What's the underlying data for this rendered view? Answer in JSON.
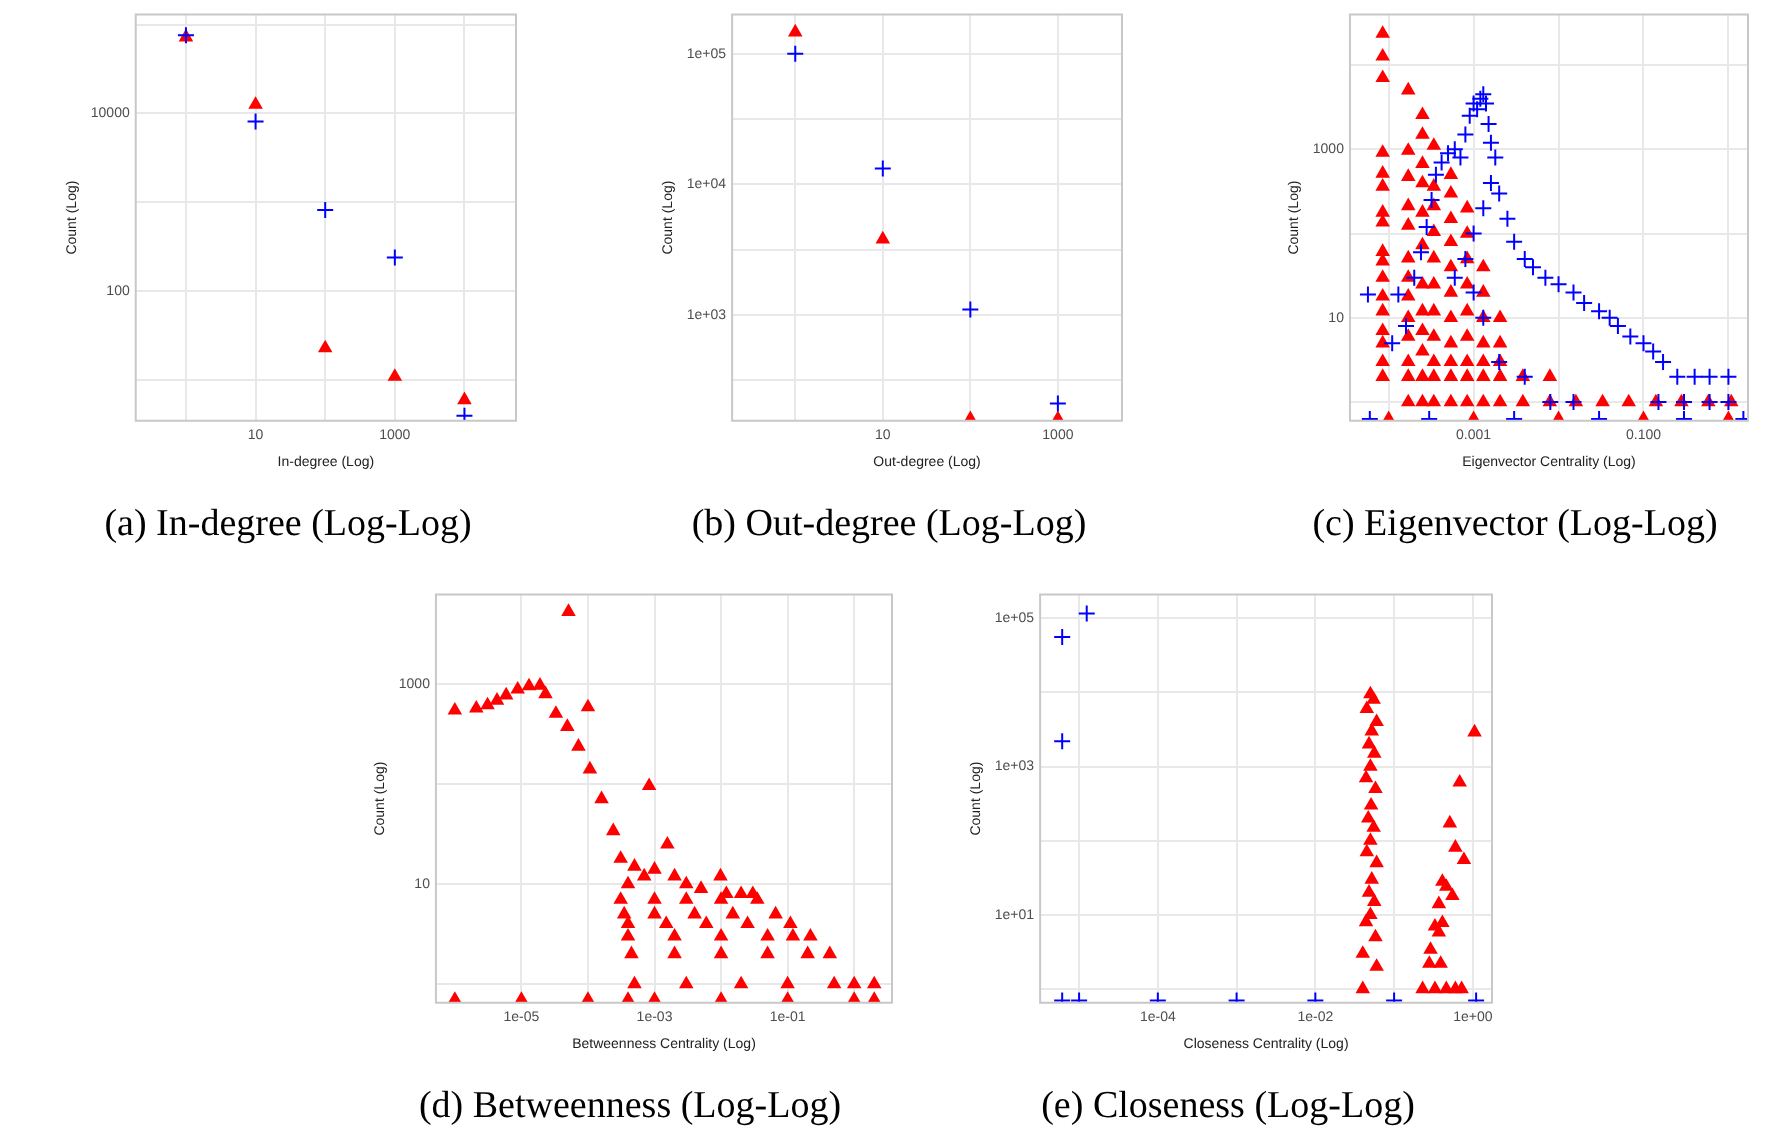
{
  "chart_data": [
    {
      "type": "scatter",
      "title": "(a) In-degree (Log-Log)",
      "xlabel": "In-degree (Log)",
      "ylabel": "Count (Log)",
      "log": "xy",
      "grid": true,
      "xlim": [
        0.19,
        55000
      ],
      "ylim": [
        3.5,
        130000
      ],
      "xticks": [
        {
          "value": 1,
          "label": null
        },
        10,
        {
          "value": 100,
          "label": null
        },
        1000,
        {
          "value": 10000,
          "label": null
        }
      ],
      "yticks": [
        {
          "value": 10,
          "label": null
        },
        100,
        {
          "value": 1000,
          "label": null
        },
        10000,
        {
          "value": 100000,
          "label": null
        }
      ],
      "series": [
        {
          "color": "#0000ff",
          "marker": "cross",
          "x": [
            1,
            10,
            100,
            1000,
            10000
          ],
          "values": [
            76000,
            8100,
            820,
            240,
            4
          ]
        },
        {
          "color": "#ff0000",
          "marker": "triangle",
          "x": [
            1,
            10,
            100,
            1000,
            10000
          ],
          "values": [
            72000,
            12600,
            23,
            11,
            6
          ]
        }
      ]
    },
    {
      "type": "scatter",
      "title": "(b) Out-degree (Log-Log)",
      "xlabel": "Out-degree (Log)",
      "ylabel": "Count (Log)",
      "log": "xy",
      "grid": true,
      "xlim": [
        0.19,
        5400
      ],
      "ylim": [
        155,
        200000
      ],
      "xticks": [
        {
          "value": 1,
          "label": null
        },
        10,
        {
          "value": 100,
          "label": null
        },
        1000
      ],
      "yticks": [
        {
          "value": 316,
          "label": null
        },
        {
          "value": 1000,
          "label": "1e+03"
        },
        {
          "value": 3162,
          "label": null
        },
        {
          "value": 10000,
          "label": "1e+04"
        },
        {
          "value": 31623,
          "label": null
        },
        {
          "value": 100000,
          "label": "1e+05"
        }
      ],
      "series": [
        {
          "color": "#0000ff",
          "marker": "cross",
          "x": [
            1,
            10,
            100,
            1000
          ],
          "values": [
            100000,
            13200,
            1100,
            210
          ]
        },
        {
          "color": "#ff0000",
          "marker": "triangle",
          "x": [
            1,
            10,
            100,
            1000
          ],
          "values": [
            146000,
            3800,
            160,
            160
          ]
        }
      ]
    },
    {
      "type": "scatter",
      "title": "(c) Eigenvector (Log-Log)",
      "xlabel": "Eigenvector Centrality (Log)",
      "ylabel": "Count (Log)",
      "log": "xy",
      "grid": true,
      "xlim": [
        3.5e-05,
        1.7
      ],
      "ylim": [
        0.6,
        40000
      ],
      "xticks": [
        {
          "value": 0.0001,
          "label": null
        },
        0.001,
        {
          "value": 0.01,
          "label": null
        },
        {
          "value": 0.1,
          "label": "0.100"
        },
        {
          "value": 1,
          "label": null
        }
      ],
      "yticks": [
        {
          "value": 1,
          "label": null
        },
        10,
        {
          "value": 100,
          "label": null
        },
        1000,
        {
          "value": 10000,
          "label": null
        }
      ],
      "series": [
        {
          "color": "#0000ff",
          "marker": "cross",
          "x": [
            5.7e-05,
            0.00011,
            0.00013,
            0.00016,
            0.0002,
            0.00024,
            0.00028,
            0.00032,
            0.00036,
            0.00042,
            0.0005,
            0.0006,
            0.0007,
            0.0008,
            0.0009,
            0.001,
            0.0011,
            0.0012,
            0.0013,
            0.0014,
            0.0015,
            0.0016,
            0.0018,
            0.0016,
            0.0013,
            0.001,
            0.0008,
            0.0006,
            0.001,
            0.0013,
            0.002,
            0.0025,
            0.003,
            0.004,
            0.005,
            0.007,
            0.01,
            0.015,
            0.02,
            0.03,
            0.04,
            0.05,
            0.07,
            0.1,
            0.13,
            0.17,
            0.25,
            0.4,
            0.6,
            1,
            0.15,
            0.3,
            0.6,
            1,
            0.002,
            0.004,
            0.008,
            0.015,
            6e-05,
            0.0003,
            0.003,
            0.03,
            0.3,
            1.5
          ],
          "values": [
            19,
            5,
            19,
            8,
            30,
            60,
            120,
            250,
            500,
            700,
            900,
            1000,
            800,
            1500,
            2500,
            3500,
            3000,
            4000,
            4500,
            3500,
            2000,
            1200,
            800,
            400,
            200,
            100,
            50,
            30,
            20,
            10,
            300,
            150,
            80,
            50,
            40,
            30,
            25,
            20,
            15,
            12,
            10,
            8,
            6,
            5,
            4,
            3,
            2,
            2,
            2,
            2,
            1,
            1,
            1,
            1,
            3,
            2,
            1,
            1,
            0.63,
            0.63,
            0.63,
            0.63,
            0.63,
            0.63
          ]
        },
        {
          "color": "#ff0000",
          "marker": "triangle",
          "x": [
            8.5e-05,
            8.5e-05,
            8.5e-05,
            8.5e-05,
            8.5e-05,
            8.5e-05,
            8.5e-05,
            8.5e-05,
            8.5e-05,
            8.5e-05,
            8.5e-05,
            8.5e-05,
            8.5e-05,
            8.5e-05,
            8.5e-05,
            8.5e-05,
            8.5e-05,
            0.00017,
            0.00017,
            0.00017,
            0.00017,
            0.00017,
            0.00017,
            0.00017,
            0.00017,
            0.00017,
            0.00017,
            0.00017,
            0.00017,
            0.00017,
            0.00025,
            0.00025,
            0.00025,
            0.00025,
            0.00025,
            0.00025,
            0.00025,
            0.00025,
            0.00025,
            0.00025,
            0.00025,
            0.00025,
            0.00034,
            0.00034,
            0.00034,
            0.00034,
            0.00034,
            0.00034,
            0.00034,
            0.00034,
            0.00034,
            0.00034,
            0.00034,
            0.00054,
            0.00054,
            0.00054,
            0.00054,
            0.00054,
            0.00054,
            0.00054,
            0.00054,
            0.00054,
            0.00054,
            0.00054,
            0.00084,
            0.00084,
            0.00084,
            0.00084,
            0.00084,
            0.00084,
            0.00084,
            0.00084,
            0.00084,
            0.0013,
            0.0013,
            0.0013,
            0.0013,
            0.0013,
            0.0013,
            0.0013,
            0.00205,
            0.00205,
            0.00205,
            0.00205,
            0.00205,
            0.0038,
            0.0079,
            0.016,
            0.033,
            0.067,
            0.14,
            0.28,
            0.58,
            1.08,
            0.0038,
            0.0079,
            0.0001,
            0.001,
            0.01,
            0.1,
            1
          ],
          "values": [
            23700,
            12700,
            7070,
            915,
            518,
            363,
            178,
            136,
            61,
            47,
            30,
            18,
            12,
            7,
            5,
            3,
            2,
            5040,
            965,
            474,
            213,
            125,
            51,
            30,
            18,
            10,
            6,
            3,
            2,
            1,
            2570,
            1500,
            676,
            397,
            178,
            73,
            25,
            12,
            7,
            4,
            2,
            1,
            1110,
            363,
            213,
            105,
            51,
            25,
            12,
            6,
            3,
            2,
            1,
            500,
            300,
            150,
            80,
            40,
            20,
            10,
            5,
            3,
            2,
            1,
            200,
            100,
            50,
            25,
            12,
            6,
            3,
            2,
            1,
            40,
            20,
            10,
            5,
            3,
            2,
            1,
            10,
            5,
            3,
            2,
            1,
            1,
            1,
            1,
            1,
            1,
            1,
            1,
            1,
            1,
            2,
            2,
            0.63,
            0.63,
            0.63,
            0.63,
            0.63
          ]
        }
      ]
    },
    {
      "type": "scatter",
      "title": "(d) Betweenness (Log-Log)",
      "xlabel": "Betweenness Centrality (Log)",
      "ylabel": "Count (Log)",
      "log": "xy",
      "grid": true,
      "xlim": [
        5.2e-07,
        3.7
      ],
      "ylim": [
        0.65,
        7900
      ],
      "xticks": [
        {
          "value": 1e-05,
          "label": "1e-05"
        },
        {
          "value": 0.0001,
          "label": null
        },
        {
          "value": 0.001,
          "label": "1e-03"
        },
        {
          "value": 0.01,
          "label": null
        },
        {
          "value": 0.1,
          "label": "1e-01"
        },
        {
          "value": 1,
          "label": null
        }
      ],
      "yticks": [
        {
          "value": 1,
          "label": null
        },
        10,
        {
          "value": 100,
          "label": null
        },
        1000
      ],
      "series": [
        {
          "color": "#ff0000",
          "marker": "triangle",
          "x": [
            1e-06,
            2.1e-06,
            3.1e-06,
            4.3e-06,
            5.9e-06,
            8.8e-06,
            1.3e-05,
            1.9e-05,
            2.3e-05,
            3.3e-05,
            4.9e-05,
            7.2e-05,
            0.000107,
            0.00016,
            0.00024,
            0.00031,
            0.0004,
            5.1e-05,
            0.0001,
            0.00083,
            0.00156,
            0.0098,
            0.012,
            0.0005,
            0.0007,
            0.001,
            0.002,
            0.003,
            0.005,
            0.02,
            0.03,
            0.00031,
            0.001,
            0.003,
            0.01,
            0.035,
            0.00035,
            0.001,
            0.004,
            0.015,
            0.066,
            0.0004,
            0.0015,
            0.006,
            0.025,
            0.11,
            0.0004,
            0.002,
            0.01,
            0.05,
            0.12,
            0.22,
            0.00045,
            0.002,
            0.01,
            0.05,
            0.2,
            0.43,
            0.0005,
            0.003,
            0.02,
            0.1,
            0.5,
            1,
            2,
            1e-06,
            1e-05,
            0.0001,
            0.0004,
            0.001,
            0.01,
            0.1,
            1,
            2
          ],
          "values": [
            547,
            572,
            617,
            686,
            774,
            886,
            956,
            970,
            797,
            507,
            375,
            238,
            141,
            71,
            34,
            18,
            10,
            5300,
            590,
            96,
            25,
            12,
            8,
            15,
            12,
            14,
            12,
            10,
            9,
            8,
            8,
            7,
            7,
            7,
            7,
            7,
            5,
            5,
            5,
            5,
            5,
            4,
            4,
            4,
            4,
            4,
            3,
            3,
            3,
            3,
            3,
            3,
            2,
            2,
            2,
            2,
            2,
            2,
            1,
            1,
            1,
            1,
            1,
            1,
            1,
            0.7,
            0.7,
            0.7,
            0.7,
            0.7,
            0.7,
            0.7,
            0.7,
            0.7
          ]
        }
      ]
    },
    {
      "type": "scatter",
      "title": "(e) Closeness (Log-Log)",
      "xlabel": "Closeness Centrality (Log)",
      "ylabel": "Count (Log)",
      "log": "xy",
      "grid": true,
      "xlim": [
        3.2e-06,
        1.75
      ],
      "ylim": [
        0.65,
        210000
      ],
      "xticks": [
        {
          "value": 1e-05,
          "label": null
        },
        {
          "value": 0.0001,
          "label": "1e-04"
        },
        {
          "value": 0.001,
          "label": null
        },
        {
          "value": 0.01,
          "label": "1e-02"
        },
        {
          "value": 0.1,
          "label": null
        },
        {
          "value": 1,
          "label": "1e+00"
        }
      ],
      "yticks": [
        {
          "value": 1,
          "label": null
        },
        {
          "value": 10,
          "label": "1e+01"
        },
        {
          "value": 100,
          "label": null
        },
        {
          "value": 1000,
          "label": "1e+03"
        },
        {
          "value": 10000,
          "label": null
        },
        {
          "value": 100000,
          "label": "1e+05"
        }
      ],
      "series": [
        {
          "color": "#0000ff",
          "marker": "cross",
          "x": [
            6.1e-06,
            1.25e-05,
            6.1e-06,
            6.1e-06,
            1e-05,
            0.0001,
            0.001,
            0.01,
            0.1,
            1.1
          ],
          "values": [
            56000,
            116000,
            2200,
            0.7,
            0.7,
            0.7,
            0.7,
            0.7,
            0.7,
            0.7
          ]
        },
        {
          "color": "#ff0000",
          "marker": "triangle",
          "x": [
            0.05,
            0.055,
            0.045,
            0.06,
            0.052,
            0.048,
            0.056,
            0.05,
            0.044,
            0.058,
            0.051,
            0.047,
            0.055,
            0.05,
            0.045,
            0.06,
            0.052,
            0.048,
            0.056,
            0.05,
            0.044,
            0.058,
            0.04,
            0.06,
            0.04,
            1.05,
            0.68,
            0.51,
            0.6,
            0.77,
            0.41,
            0.46,
            0.55,
            0.37,
            0.41,
            0.33,
            0.37,
            0.29,
            0.28,
            0.39,
            0.23,
            0.33,
            0.46,
            0.6,
            0.72
          ],
          "values": [
            9500,
            8000,
            6000,
            4000,
            3000,
            2000,
            1500,
            1000,
            700,
            500,
            300,
            200,
            150,
            100,
            70,
            50,
            30,
            20,
            15,
            10,
            8,
            5,
            3,
            2,
            1,
            2900,
            612,
            172,
            81,
            55,
            28,
            24,
            18,
            14,
            7.8,
            7,
            5.8,
            3.4,
            2.2,
            2.2,
            1,
            1,
            1,
            1,
            1
          ]
        }
      ]
    }
  ]
}
